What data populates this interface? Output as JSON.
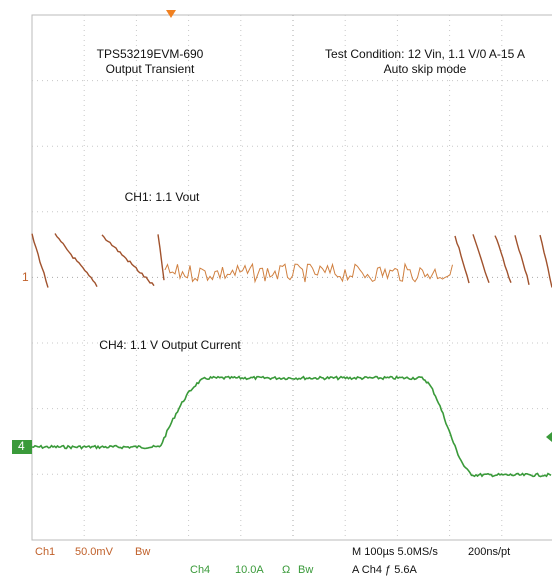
{
  "annotations": {
    "board": "TPS53219EVM-690",
    "subtitle": "Output Transient",
    "condition": "Test Condition: 12 Vin, 1.1 V/0 A-15 A",
    "mode": "Auto skip mode",
    "ch1_label": "CH1: 1.1 Vout",
    "ch4_label": "CH4: 1.1 V Output Current"
  },
  "markers": {
    "ch1": "1",
    "ch4": "4"
  },
  "footer": {
    "ch1": "Ch1",
    "ch1_scale": "50.0mV",
    "ch1_bw": "Bw",
    "ch4": "Ch4",
    "ch4_scale": "10.0A",
    "ch4_ohm": "Ω",
    "ch4_bw": "Bw",
    "timebase": "M 100µs 5.0MS/s",
    "resolution": "200ns/pt",
    "trigger": "A  Ch4  ƒ 5.6A"
  }
}
